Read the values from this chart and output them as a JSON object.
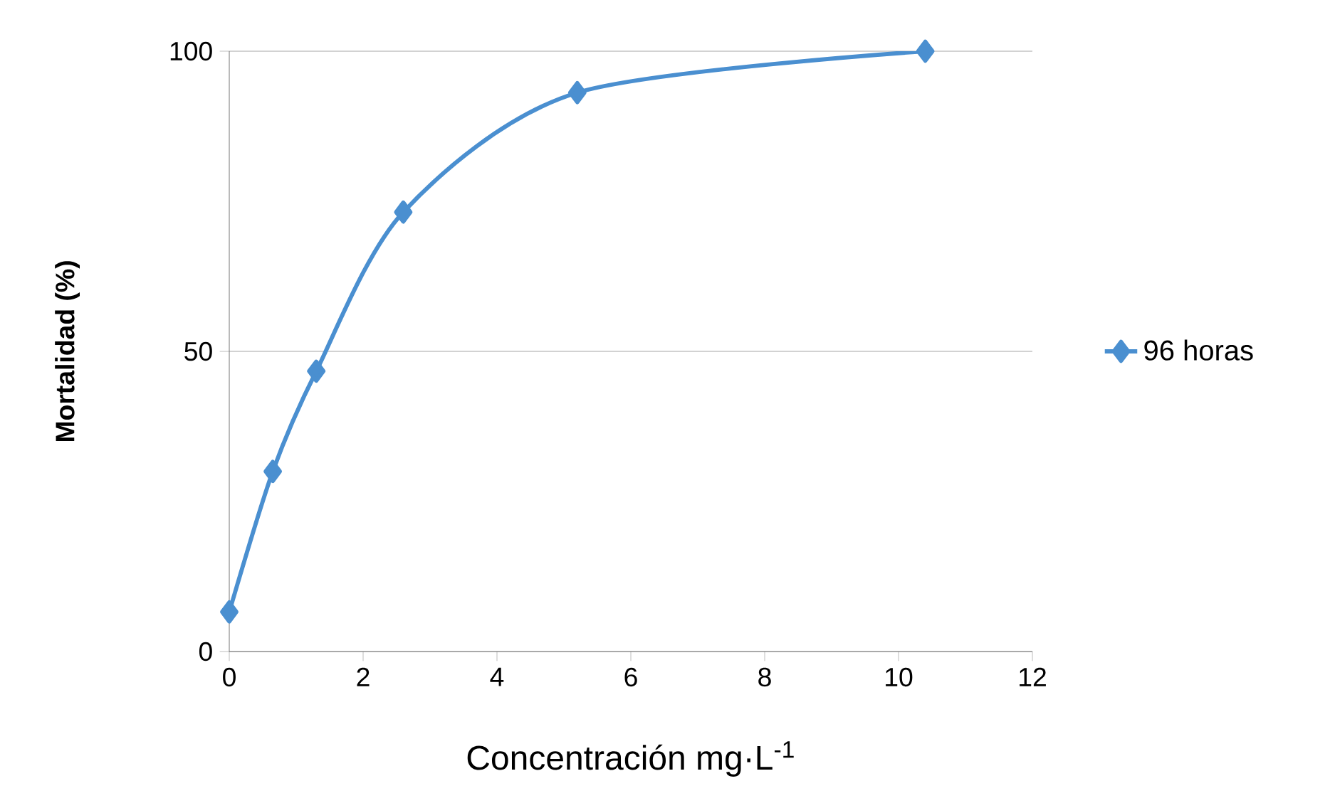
{
  "chart_data": {
    "type": "line",
    "xlabel": "Concentración mg·L$^{-1}$",
    "ylabel": "Mortalidad (%)",
    "xlim": [
      0,
      12
    ],
    "xticks": [
      0,
      2,
      4,
      6,
      8,
      10,
      12
    ],
    "ylim": [
      0,
      100
    ],
    "yticks": [
      0,
      50,
      100
    ],
    "grid": "y",
    "legend": "right",
    "marker": "diamond",
    "line_style": "solid",
    "series": [
      {
        "name": "96 horas",
        "color": "#4a8fd0",
        "x": [
          0,
          0.65,
          1.3,
          2.6,
          5.2,
          10.4
        ],
        "values": [
          6.6,
          30,
          46.7,
          73.2,
          93.1,
          100
        ]
      }
    ]
  }
}
